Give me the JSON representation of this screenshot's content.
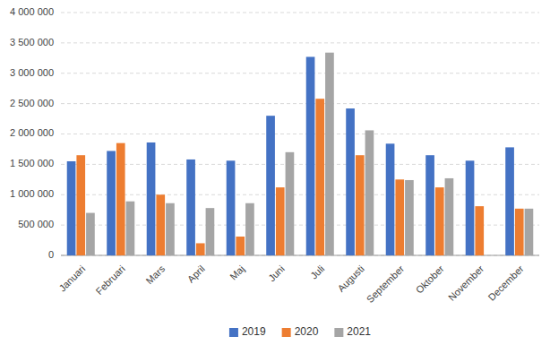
{
  "chart_data": {
    "type": "bar",
    "categories": [
      "Januari",
      "Februari",
      "Mars",
      "April",
      "Maj",
      "Juni",
      "Juli",
      "Augusti",
      "September",
      "Oktober",
      "November",
      "December"
    ],
    "series": [
      {
        "name": "2019",
        "color": "#4472C4",
        "values": [
          1550000,
          1720000,
          1860000,
          1580000,
          1560000,
          2300000,
          3270000,
          2420000,
          1840000,
          1650000,
          1560000,
          1780000
        ]
      },
      {
        "name": "2020",
        "color": "#ED7D31",
        "values": [
          1650000,
          1850000,
          1000000,
          200000,
          310000,
          1120000,
          2580000,
          1650000,
          1250000,
          1120000,
          810000,
          770000
        ]
      },
      {
        "name": "2021",
        "color": "#A5A5A5",
        "values": [
          700000,
          890000,
          860000,
          780000,
          860000,
          1700000,
          3340000,
          2060000,
          1240000,
          1270000,
          0,
          770000
        ]
      }
    ],
    "ylim": [
      0,
      4000000
    ],
    "yticks": [
      0,
      {
        "value": 500000,
        "label": "500 000"
      },
      {
        "value": 1000000,
        "label": "1 000 000"
      },
      {
        "value": 1500000,
        "label": "1 500 000"
      },
      {
        "value": 2000000,
        "label": "2 000 000"
      },
      {
        "value": 2500000,
        "label": "2 500 000"
      },
      {
        "value": 3000000,
        "label": "3 000 000"
      },
      {
        "value": 3500000,
        "label": "3 500 000"
      },
      {
        "value": 4000000,
        "label": "4 000 000"
      }
    ],
    "grid": true,
    "legend": "bottom"
  }
}
